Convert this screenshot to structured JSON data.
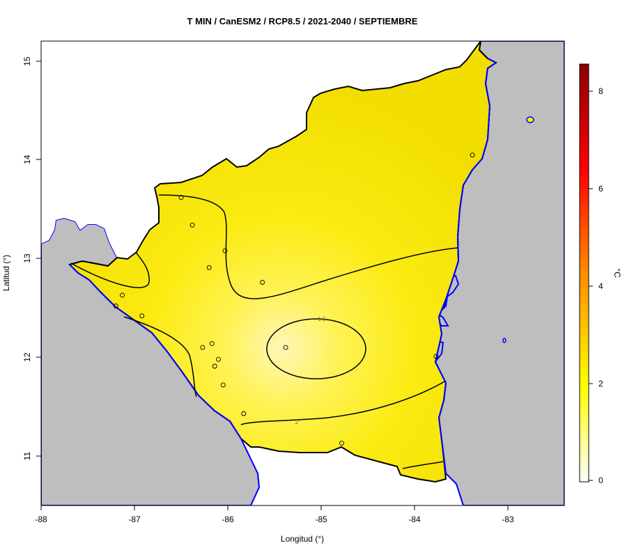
{
  "title": "T MIN / CanESM2 / RCP8.5 / 2021-2040 / SEPTIEMBRE",
  "x_axis": {
    "label": "Longitud (°)",
    "ticks": [
      "-88",
      "-87",
      "-86",
      "-85",
      "-84",
      "-83"
    ]
  },
  "y_axis": {
    "label": "Latitud (°)",
    "ticks": [
      "11",
      "12",
      "13",
      "14",
      "15"
    ]
  },
  "colorbar": {
    "unit": "°C",
    "ticks": [
      "0",
      "2",
      "4",
      "6",
      "8"
    ],
    "range": [
      0,
      8.6
    ],
    "colors": [
      "#ffffff",
      "#ffff00",
      "#ff8c00",
      "#ff0000",
      "#8b0000"
    ]
  },
  "contour_labels": [
    "1.5",
    "2"
  ],
  "colors": {
    "ocean": "#bebebe",
    "land_fill": "#f2e400",
    "coast": "#0000ff",
    "border": "#000000",
    "warm_center": "#fff7b8"
  },
  "chart_data": {
    "type": "heatmap",
    "title": "T MIN / CanESM2 / RCP8.5 / 2021-2040 / SEPTIEMBRE",
    "xlabel": "Longitud (°)",
    "ylabel": "Latitud (°)",
    "xlim": [
      -88,
      -82.4
    ],
    "ylim": [
      10.5,
      15.2
    ],
    "color_scale": {
      "min": 0,
      "max": 8.6,
      "unit": "°C"
    },
    "contour_levels": [
      1.5,
      2
    ],
    "stations": [
      {
        "lon": -86.5,
        "lat": 13.62
      },
      {
        "lon": -86.38,
        "lat": 13.34
      },
      {
        "lon": -86.03,
        "lat": 13.08
      },
      {
        "lon": -86.2,
        "lat": 12.91
      },
      {
        "lon": -85.63,
        "lat": 12.76
      },
      {
        "lon": -87.13,
        "lat": 12.63
      },
      {
        "lon": -87.2,
        "lat": 12.52
      },
      {
        "lon": -86.92,
        "lat": 12.42
      },
      {
        "lon": -86.17,
        "lat": 12.14
      },
      {
        "lon": -86.27,
        "lat": 12.1
      },
      {
        "lon": -85.38,
        "lat": 12.1
      },
      {
        "lon": -86.1,
        "lat": 11.98
      },
      {
        "lon": -86.14,
        "lat": 11.91
      },
      {
        "lon": -86.05,
        "lat": 11.72
      },
      {
        "lon": -85.83,
        "lat": 11.43
      },
      {
        "lon": -84.78,
        "lat": 11.13
      },
      {
        "lon": -83.77,
        "lat": 12.01
      },
      {
        "lon": -83.38,
        "lat": 14.05
      }
    ]
  }
}
